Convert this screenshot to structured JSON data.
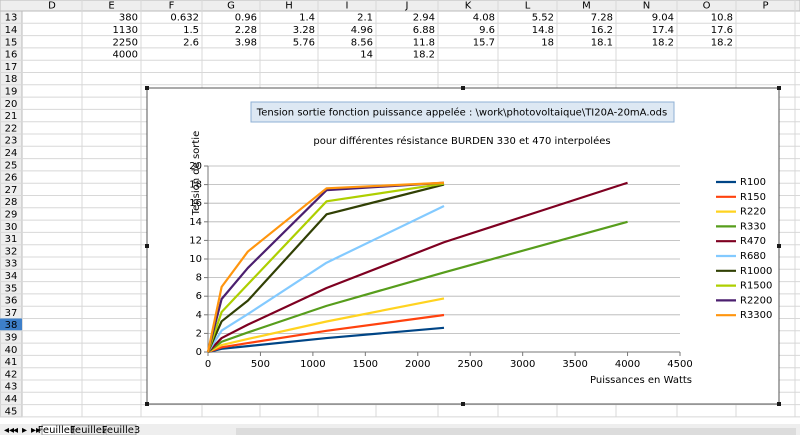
{
  "sheet": {
    "columns": [
      "D",
      "E",
      "F",
      "G",
      "H",
      "I",
      "J",
      "K",
      "L",
      "M",
      "N",
      "O",
      "P"
    ],
    "row_numbers": [
      13,
      14,
      15,
      16,
      17,
      18,
      19,
      20,
      21,
      22,
      23,
      24,
      25,
      26,
      27,
      28,
      29,
      30,
      31,
      32,
      33,
      34,
      35,
      36,
      37,
      38,
      39,
      40,
      41,
      42,
      43,
      44,
      45
    ],
    "selected_row": 38,
    "data": [
      [
        null,
        380,
        0.632,
        0.96,
        1.4,
        2.1,
        2.94,
        4.08,
        5.52,
        7.28,
        9.04,
        10.8,
        null
      ],
      [
        null,
        1130,
        1.5,
        2.28,
        3.28,
        4.96,
        6.88,
        9.6,
        14.8,
        16.2,
        17.4,
        17.6,
        null
      ],
      [
        null,
        2250,
        2.6,
        3.98,
        5.76,
        8.56,
        11.8,
        15.7,
        18,
        18.1,
        18.2,
        18.2,
        null
      ],
      [
        null,
        4000,
        null,
        null,
        null,
        14,
        18.2,
        null,
        null,
        null,
        null,
        null,
        null
      ]
    ],
    "tabs": [
      "Feuille1",
      "Feuille2",
      "Feuille3"
    ]
  },
  "chart_data": {
    "type": "line",
    "title": "Tension sortie fonction puissance appelée : \\work\\photovoltaique\\TI20A-20mA.ods",
    "subtitle": "pour différentes résistance BURDEN 330 et 470 interpolées",
    "x_label": "Puissances en Watts",
    "y_label": "Tension de sortie",
    "x": [
      0,
      130,
      380,
      1130,
      2250,
      4000
    ],
    "xlim": [
      0,
      4500
    ],
    "xticks": [
      0,
      500,
      1000,
      1500,
      2000,
      2500,
      3000,
      3500,
      4000,
      4500
    ],
    "ylim": [
      0,
      20
    ],
    "yticks": [
      0,
      2,
      4,
      6,
      8,
      10,
      12,
      14,
      16,
      18,
      20
    ],
    "grid": true,
    "legend": "right",
    "series": [
      {
        "name": "R100",
        "color": "#004586",
        "values": [
          0,
          0.35,
          0.632,
          1.5,
          2.6,
          null
        ]
      },
      {
        "name": "R150",
        "color": "#ff420e",
        "values": [
          0,
          0.5,
          0.96,
          2.28,
          3.98,
          null
        ]
      },
      {
        "name": "R220",
        "color": "#ffd320",
        "values": [
          0,
          0.75,
          1.4,
          3.28,
          5.76,
          null
        ]
      },
      {
        "name": "R330",
        "color": "#579d1c",
        "values": [
          0,
          1.1,
          2.1,
          4.96,
          8.56,
          14
        ]
      },
      {
        "name": "R470",
        "color": "#7e0021",
        "values": [
          0,
          1.5,
          2.94,
          6.88,
          11.8,
          18.2
        ]
      },
      {
        "name": "R680",
        "color": "#83caff",
        "values": [
          0,
          2.3,
          4.08,
          9.6,
          15.7,
          null
        ]
      },
      {
        "name": "R1000",
        "color": "#314004",
        "values": [
          0,
          3.3,
          5.52,
          14.8,
          18,
          null
        ]
      },
      {
        "name": "R1500",
        "color": "#aecf00",
        "values": [
          0,
          4.3,
          7.28,
          16.2,
          18.1,
          null
        ]
      },
      {
        "name": "R2200",
        "color": "#4b1f6f",
        "values": [
          0,
          5.7,
          9.04,
          17.4,
          18.2,
          null
        ]
      },
      {
        "name": "R3300",
        "color": "#ff950e",
        "values": [
          0,
          7,
          10.8,
          17.6,
          18.2,
          null
        ]
      }
    ]
  }
}
